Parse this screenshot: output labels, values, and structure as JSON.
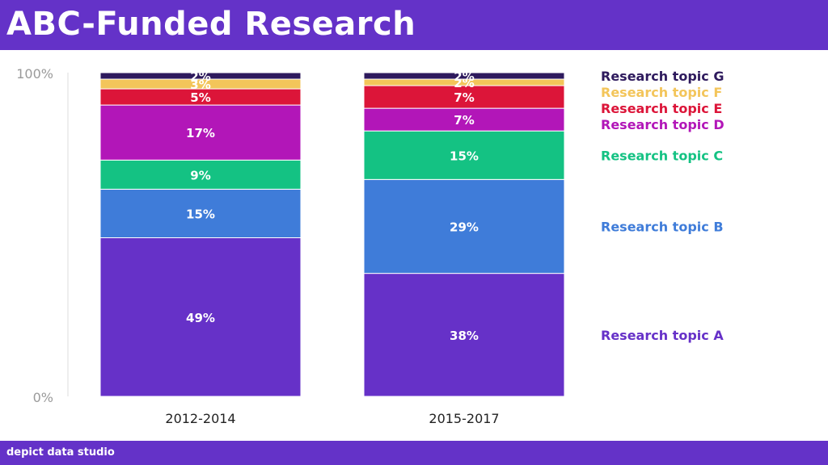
{
  "header": {
    "title": "ABC-Funded Research"
  },
  "footer": {
    "brand": "depict data studio"
  },
  "colors": {
    "header_bg": "#6432c8",
    "topic_A": "#6631c8",
    "topic_B": "#3f7cd9",
    "topic_C": "#14c283",
    "topic_D": "#b216b8",
    "topic_E": "#dc1539",
    "topic_F": "#f3c55a",
    "topic_G": "#2e1a5d"
  },
  "chart_data": {
    "type": "bar",
    "stacked": true,
    "title": "",
    "xlabel": "",
    "ylabel": "",
    "ylim": [
      0,
      100
    ],
    "y_ticks": [
      "0%",
      "100%"
    ],
    "categories": [
      "2012-2014",
      "2015-2017"
    ],
    "series": [
      {
        "name": "Research topic A",
        "values": [
          49,
          38
        ],
        "labels": [
          "49%",
          "38%"
        ],
        "color": "#6631c8"
      },
      {
        "name": "Research topic B",
        "values": [
          15,
          29
        ],
        "labels": [
          "15%",
          "29%"
        ],
        "color": "#3f7cd9"
      },
      {
        "name": "Research topic C",
        "values": [
          9,
          15
        ],
        "labels": [
          "9%",
          "15%"
        ],
        "color": "#14c283"
      },
      {
        "name": "Research topic D",
        "values": [
          17,
          7
        ],
        "labels": [
          "17%",
          "7%"
        ],
        "color": "#b216b8"
      },
      {
        "name": "Research topic E",
        "values": [
          5,
          7
        ],
        "labels": [
          "5%",
          "7%"
        ],
        "color": "#dc1539"
      },
      {
        "name": "Research topic F",
        "values": [
          3,
          2
        ],
        "labels": [
          "3%",
          "2%"
        ],
        "color": "#f3c55a"
      },
      {
        "name": "Research topic G",
        "values": [
          2,
          2
        ],
        "labels": [
          "2%",
          "2%"
        ],
        "color": "#2e1a5d"
      }
    ],
    "legend": "right, aligned with segments"
  }
}
